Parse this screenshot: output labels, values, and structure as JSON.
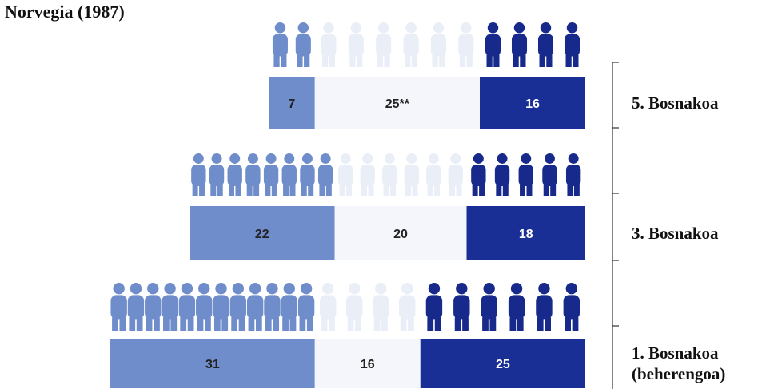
{
  "chart_data": {
    "type": "bar",
    "stacked": true,
    "orientation": "horizontal",
    "title": "Norvegia (1987)",
    "categories": [
      "5. Bosnakoa",
      "3. Bosnakoa",
      "1. Bosnakoa (beherengoa)"
    ],
    "category_lines": [
      [
        "5. Bosnakoa"
      ],
      [
        "3. Bosnakoa"
      ],
      [
        "1. Bosnakoa",
        "(beherengoa)"
      ]
    ],
    "series": [
      {
        "values": [
          7,
          22,
          31
        ],
        "labels": [
          "7",
          "22",
          "31"
        ],
        "color": "#6f8ccb",
        "icon_color": "#6f8ccb"
      },
      {
        "values": [
          25,
          20,
          16
        ],
        "labels": [
          "25**",
          "20",
          "16"
        ],
        "color": "#f4f6fb",
        "icon_color": "#e9eef7"
      },
      {
        "values": [
          16,
          18,
          25
        ],
        "labels": [
          "16",
          "18",
          "25"
        ],
        "color": "#1a2f96",
        "icon_color": "#172a8c"
      }
    ],
    "icon_counts": [
      [
        2,
        6,
        4
      ],
      [
        8,
        6,
        5
      ],
      [
        12,
        4,
        6
      ]
    ],
    "legend": "none",
    "grid": false
  }
}
